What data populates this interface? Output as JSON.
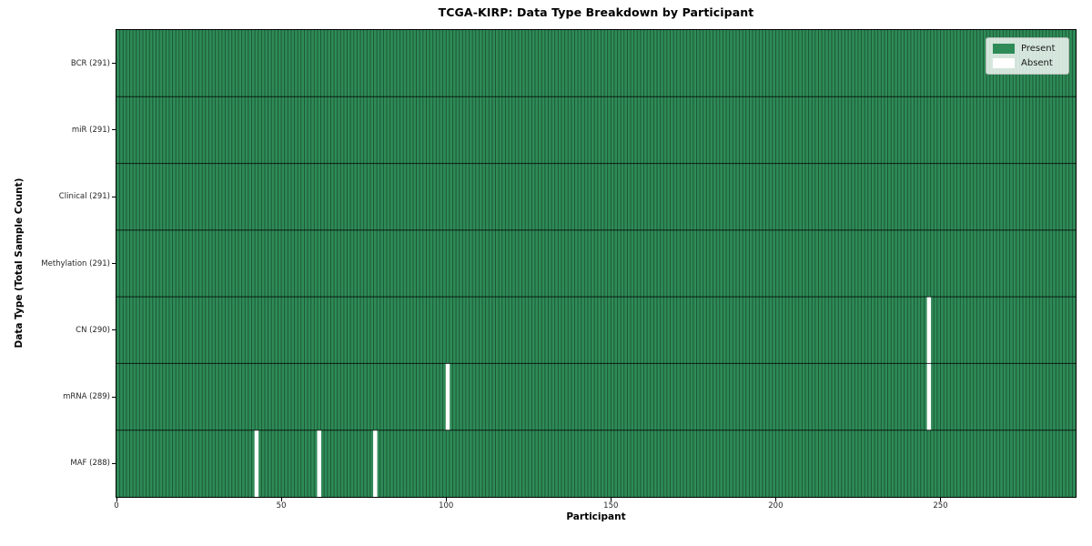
{
  "chart_data": {
    "type": "heatmap",
    "title": "TCGA-KIRP: Data Type Breakdown by Participant",
    "xlabel": "Participant",
    "ylabel": "Data Type (Total Sample Count)",
    "x_ticks": [
      0,
      50,
      100,
      150,
      200,
      250
    ],
    "x_range": [
      0,
      291
    ],
    "n_participants": 291,
    "grid": "cell-edges",
    "rows": [
      {
        "label": "BCR (291)",
        "data_type": "BCR",
        "total_samples": 291,
        "absent_participants": []
      },
      {
        "label": "miR (291)",
        "data_type": "miR",
        "total_samples": 291,
        "absent_participants": []
      },
      {
        "label": "Clinical (291)",
        "data_type": "Clinical",
        "total_samples": 291,
        "absent_participants": []
      },
      {
        "label": "Methylation (291)",
        "data_type": "Methylation",
        "total_samples": 291,
        "absent_participants": []
      },
      {
        "label": "CN (290)",
        "data_type": "CN",
        "total_samples": 290,
        "absent_participants": [
          246
        ]
      },
      {
        "label": "mRNA (289)",
        "data_type": "mRNA",
        "total_samples": 289,
        "absent_participants": [
          100,
          246
        ]
      },
      {
        "label": "MAF (288)",
        "data_type": "MAF",
        "total_samples": 288,
        "absent_participants": [
          42,
          61,
          78
        ]
      }
    ],
    "legend": {
      "position": "upper right",
      "entries": [
        {
          "label": "Present",
          "color": "#2e8b57"
        },
        {
          "label": "Absent",
          "color": "#ffffff"
        }
      ]
    },
    "colors": {
      "present": "#2e8b57",
      "absent": "#ffffff",
      "cell_edge": "rgba(0,0,0,0.40)",
      "row_separator": "rgba(0,0,0,0.78)",
      "axes_border": "#000000",
      "background": "#ffffff"
    }
  }
}
